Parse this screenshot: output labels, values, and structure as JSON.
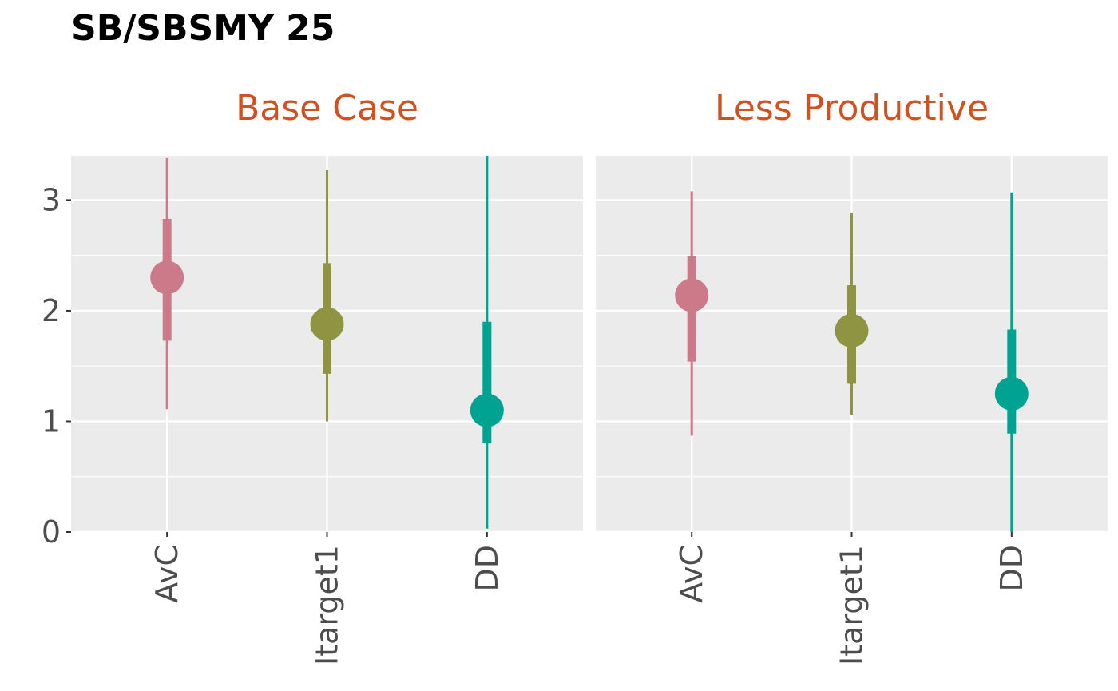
{
  "title": "SB/SBSMY 25",
  "colors": {
    "panel_background": "#ebebeb",
    "grid": "#ffffff",
    "strip_text": "#d05220",
    "tick_text": "#4d4d4d",
    "tick_mark": "#333333"
  },
  "chart_data": {
    "type": "pointrange",
    "y_range": [
      0,
      3.4
    ],
    "y_ticks": [
      0,
      1,
      2,
      3
    ],
    "y_tick_labels": [
      "0",
      "1",
      "2",
      "3"
    ],
    "categories": [
      "AvC",
      "Itarget1",
      "DD"
    ],
    "category_colors": [
      "#cc7a8a",
      "#8f9442",
      "#00a391"
    ],
    "grid": true,
    "facets": [
      {
        "label": "Base Case",
        "points": [
          {
            "category": "AvC",
            "median": 2.3,
            "inner": [
              1.73,
              2.83
            ],
            "outer": [
              1.11,
              3.38
            ]
          },
          {
            "category": "Itarget1",
            "median": 1.88,
            "inner": [
              1.43,
              2.43
            ],
            "outer": [
              1.0,
              3.27
            ]
          },
          {
            "category": "DD",
            "median": 1.1,
            "inner": [
              0.8,
              1.9
            ],
            "outer": [
              0.03,
              3.4
            ]
          }
        ]
      },
      {
        "label": "Less Productive",
        "points": [
          {
            "category": "AvC",
            "median": 2.14,
            "inner": [
              1.54,
              2.49
            ],
            "outer": [
              0.87,
              3.08
            ]
          },
          {
            "category": "Itarget1",
            "median": 1.82,
            "inner": [
              1.34,
              2.23
            ],
            "outer": [
              1.06,
              2.88
            ]
          },
          {
            "category": "DD",
            "median": 1.25,
            "inner": [
              0.89,
              1.83
            ],
            "outer": [
              0.0,
              3.07
            ]
          }
        ]
      }
    ]
  }
}
